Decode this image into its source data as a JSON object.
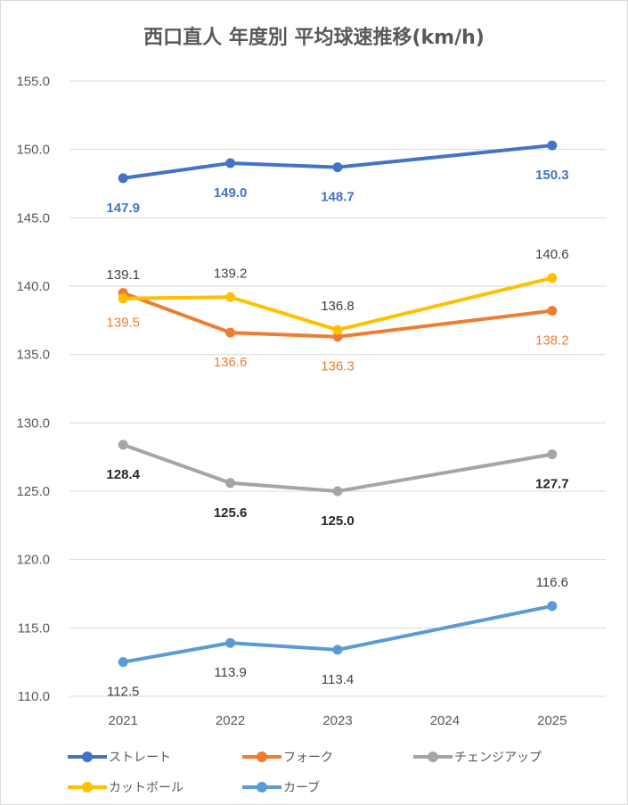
{
  "chart_data": {
    "type": "line",
    "title": "西口直人 年度別 平均球速推移(km/h)",
    "categories": [
      "2021",
      "2022",
      "2023",
      "2024",
      "2025"
    ],
    "ylim": [
      110.0,
      155.0
    ],
    "yticks": [
      "110.0",
      "115.0",
      "120.0",
      "125.0",
      "130.0",
      "135.0",
      "140.0",
      "145.0",
      "150.0",
      "155.0"
    ],
    "grid": true,
    "legend_position": "bottom",
    "series": [
      {
        "name": "ストレート",
        "color": "#4472c4",
        "label_color": "#4472c4",
        "label_bold": true,
        "values": [
          147.9,
          149.0,
          148.7,
          null,
          150.3
        ],
        "labels": [
          "147.9",
          "149.0",
          "148.7",
          null,
          "150.3"
        ],
        "label_pos": [
          "below",
          "below",
          "below",
          null,
          "below"
        ]
      },
      {
        "name": "フォーク",
        "color": "#ed7d31",
        "label_color": "#ed7d31",
        "label_bold": false,
        "values": [
          139.5,
          136.6,
          136.3,
          null,
          138.2
        ],
        "labels": [
          "139.5",
          "136.6",
          "136.3",
          null,
          "138.2"
        ],
        "label_pos": [
          "below",
          "below",
          "below",
          null,
          "below"
        ]
      },
      {
        "name": "チェンジアップ",
        "color": "#a5a5a5",
        "label_color": "#262626",
        "label_bold": true,
        "values": [
          128.4,
          125.6,
          125.0,
          null,
          127.7
        ],
        "labels": [
          "128.4",
          "125.6",
          "125.0",
          null,
          "127.7"
        ],
        "label_pos": [
          "below",
          "below",
          "below",
          null,
          "below"
        ]
      },
      {
        "name": "カットボール",
        "color": "#ffc000",
        "label_color": "#404040",
        "label_bold": false,
        "values": [
          139.1,
          139.2,
          136.8,
          null,
          140.6
        ],
        "labels": [
          "139.1",
          "139.2",
          "136.8",
          null,
          "140.6"
        ],
        "label_pos": [
          "above",
          "above",
          "above",
          null,
          "above"
        ]
      },
      {
        "name": "カーブ",
        "color": "#5b9bd5",
        "label_color": "#404040",
        "label_bold": false,
        "values": [
          112.5,
          113.9,
          113.4,
          null,
          116.6
        ],
        "labels": [
          "112.5",
          "113.9",
          "113.4",
          null,
          "116.6"
        ],
        "label_pos": [
          "below",
          "below",
          "below",
          null,
          "above"
        ]
      }
    ]
  }
}
